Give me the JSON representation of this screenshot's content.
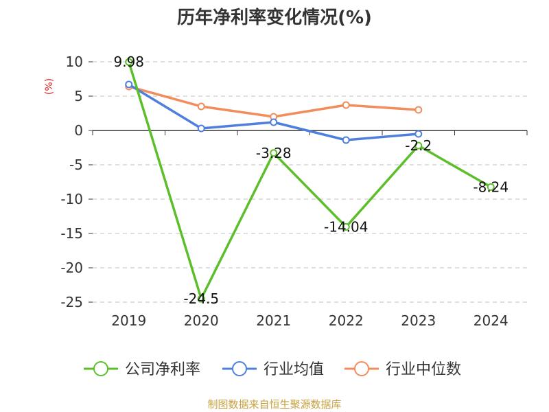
{
  "chart_data": {
    "type": "line",
    "title": "历年净利率变化情况(%)",
    "ylabel": "(%)",
    "xlabel": "",
    "categories": [
      "2019",
      "2020",
      "2021",
      "2022",
      "2023",
      "2024"
    ],
    "ylim": [
      -25,
      10
    ],
    "yticks": [
      10,
      5,
      0,
      -5,
      -10,
      -15,
      -20,
      -25
    ],
    "grid": true,
    "legend_position": "bottom",
    "series": [
      {
        "name": "公司净利率",
        "color": "#5cbf2a",
        "values": [
          9.98,
          -24.5,
          -3.28,
          -14.04,
          -2.2,
          -8.24
        ],
        "labels": [
          "9.98",
          "-24.5",
          "-3.28",
          "-14.04",
          "-2.2",
          "-8.24"
        ]
      },
      {
        "name": "行业均值",
        "color": "#4f7fdc",
        "values": [
          6.7,
          0.3,
          1.2,
          -1.4,
          -0.5,
          null
        ]
      },
      {
        "name": "行业中位数",
        "color": "#f28c5a",
        "values": [
          6.4,
          3.5,
          2.0,
          3.7,
          3.0,
          null
        ]
      }
    ]
  },
  "footer": {
    "source": "制图数据来自恒生聚源数据库"
  }
}
